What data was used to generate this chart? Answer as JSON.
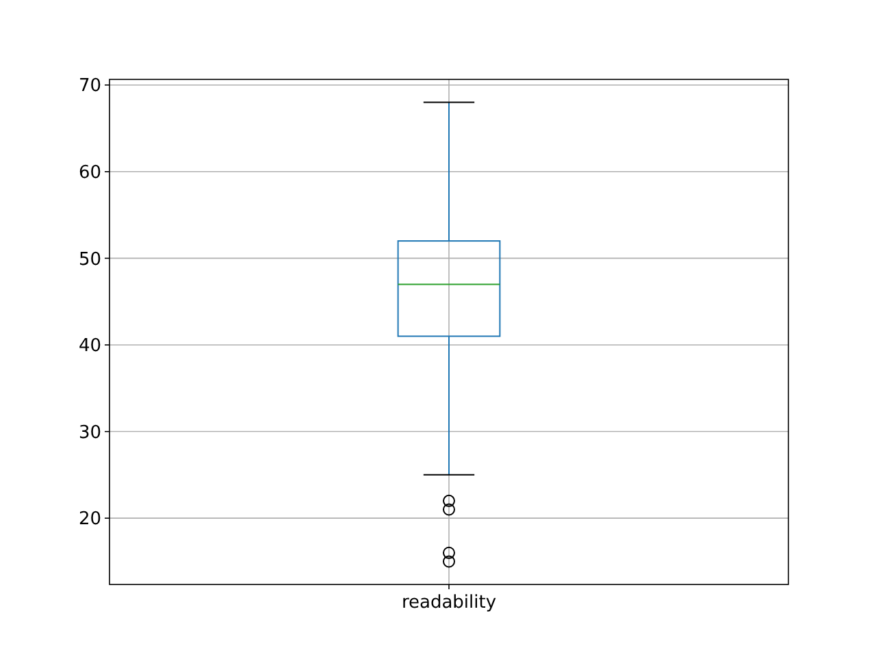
{
  "chart_data": {
    "type": "box",
    "categories": [
      "readability"
    ],
    "color": "#1f77b4",
    "boxes": [
      {
        "low": 25,
        "q1": 41,
        "median": 47,
        "q3": 52,
        "high": 68,
        "outliers": [
          15,
          16,
          21,
          22
        ]
      }
    ],
    "ylim": [
      12.35,
      70.65
    ],
    "yticks": [
      20,
      30,
      40,
      50,
      60,
      70
    ],
    "grid": true,
    "marker": "circle"
  }
}
